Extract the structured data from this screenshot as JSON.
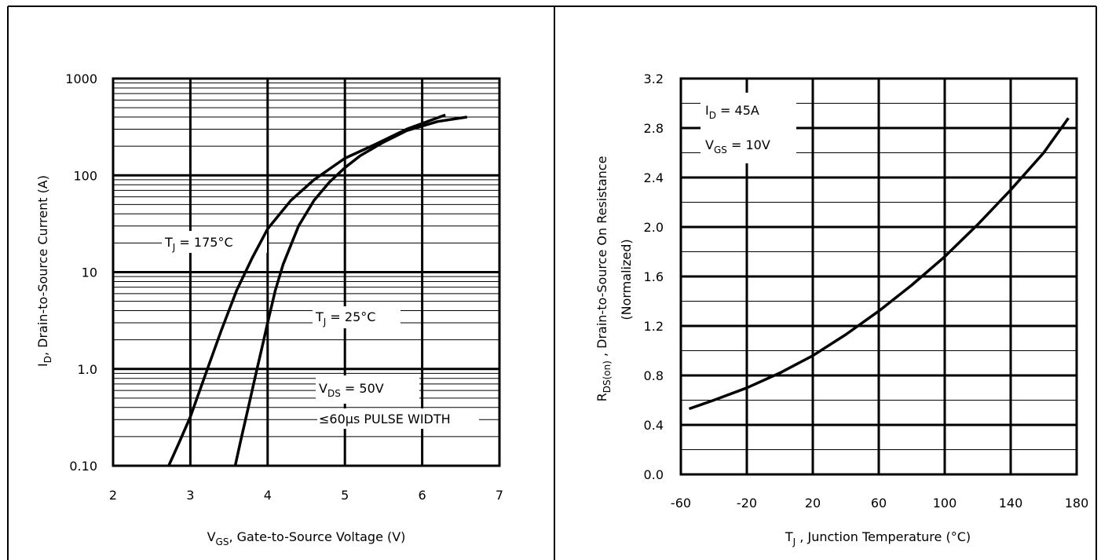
{
  "chart_data": [
    {
      "type": "line",
      "scale": "log-y",
      "xlabel": "V",
      "xlabel_sub": "GS",
      "xlabel_rest": ", Gate-to-Source Voltage (V)",
      "ylabel": "I",
      "ylabel_sub": "D",
      "ylabel_rest": ", Drain-to-Source Current (A)",
      "xlim": [
        2,
        7
      ],
      "ylim": [
        0.1,
        1000
      ],
      "x_ticks": [
        "2",
        "3",
        "4",
        "5",
        "6",
        "7"
      ],
      "y_ticks": [
        "0.10",
        "1.0",
        "10",
        "100",
        "1000"
      ],
      "grid": true,
      "annotations": {
        "tj175": {
          "main": "T",
          "sub": "J",
          "rest": " = 175°C"
        },
        "tj25": {
          "main": "T",
          "sub": "J",
          "rest": " = 25°C"
        },
        "vds": {
          "main": "V",
          "sub": "DS",
          "rest": " = 50V"
        },
        "pulse": "≤60µs PULSE WIDTH"
      },
      "series": [
        {
          "x": [
            2.72,
            2.85,
            3.0,
            3.2,
            3.4,
            3.6,
            3.8,
            4.0,
            4.3,
            4.6,
            5.0,
            5.4,
            5.8,
            6.3
          ],
          "y": [
            0.1,
            0.17,
            0.32,
            0.9,
            2.5,
            6.5,
            14,
            28,
            55,
            90,
            150,
            210,
            300,
            420
          ]
        },
        {
          "x": [
            3.58,
            3.65,
            3.75,
            3.85,
            3.95,
            4.0,
            4.1,
            4.2,
            4.4,
            4.6,
            4.8,
            5.0,
            5.2,
            5.5,
            5.8,
            6.2,
            6.58
          ],
          "y": [
            0.1,
            0.18,
            0.4,
            0.9,
            2.0,
            3.0,
            6.5,
            12,
            30,
            55,
            85,
            120,
            160,
            220,
            290,
            360,
            400
          ]
        }
      ]
    },
    {
      "type": "line",
      "xlabel": "T",
      "xlabel_sub": "J",
      "xlabel_rest": " , Junction Temperature (°C)",
      "ylabel": "R",
      "ylabel_sub": "DS(on)",
      "ylabel_rest": " , Drain-to-Source On Resistance",
      "ylabel_line2": "(Normalized)",
      "xlim": [
        -60,
        180
      ],
      "ylim": [
        0.0,
        3.2
      ],
      "x_ticks": [
        "-60",
        "-20",
        "20",
        "60",
        "100",
        "140",
        "180"
      ],
      "y_ticks": [
        "0.0",
        "0.4",
        "0.8",
        "1.2",
        "1.6",
        "2.0",
        "2.4",
        "2.8",
        "3.2"
      ],
      "grid": true,
      "annotations": {
        "id": {
          "main": "I",
          "sub": "D",
          "rest": " =  45A"
        },
        "vgs": {
          "main": "V",
          "sub": "GS",
          "rest": " = 10V"
        }
      },
      "series": [
        {
          "x": [
            -55,
            -40,
            -20,
            0,
            20,
            40,
            60,
            80,
            100,
            120,
            140,
            160,
            175
          ],
          "y": [
            0.53,
            0.6,
            0.7,
            0.82,
            0.96,
            1.13,
            1.32,
            1.53,
            1.76,
            2.02,
            2.3,
            2.6,
            2.88
          ]
        }
      ]
    }
  ]
}
